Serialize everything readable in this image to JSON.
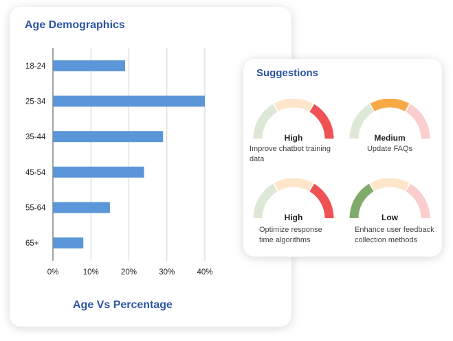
{
  "age_card": {
    "title": "Age Demographics",
    "axis_title": "Age Vs Percentage"
  },
  "chart_data": {
    "type": "bar",
    "orientation": "horizontal",
    "title": "Age Demographics",
    "xlabel": "Age Vs Percentage",
    "ylabel": "",
    "categories": [
      "18-24",
      "25-34",
      "35-44",
      "45-54",
      "55-64",
      "65+"
    ],
    "values": [
      19,
      40,
      29,
      24,
      15,
      8
    ],
    "xlim": [
      0,
      40
    ],
    "x_ticks": [
      "0%",
      "10%",
      "20%",
      "30%",
      "40%"
    ],
    "grid": "vertical",
    "bar_color": "#5b96d8"
  },
  "suggestions": {
    "title": "Suggestions",
    "items": [
      {
        "level": "High",
        "description": "Improve chatbot training data",
        "needle": "high",
        "segment_colors": [
          "#dde8d6",
          "#fde6c9",
          "#ee5252"
        ]
      },
      {
        "level": "Medium",
        "description": "Update FAQs",
        "needle": "medium",
        "segment_colors": [
          "#dde8d6",
          "#f7a946",
          "#fbcdcd"
        ]
      },
      {
        "level": "High",
        "description": "Optimize response time algorithms",
        "needle": "high",
        "segment_colors": [
          "#dde8d6",
          "#fde6c9",
          "#ee5252"
        ]
      },
      {
        "level": "Low",
        "description": "Enhance user feedback collection methods",
        "needle": "low",
        "segment_colors": [
          "#81ab6d",
          "#fde6c9",
          "#fbcdcd"
        ]
      }
    ]
  }
}
